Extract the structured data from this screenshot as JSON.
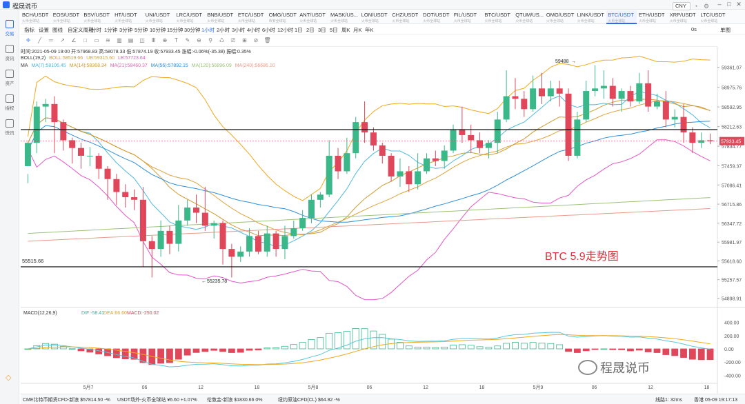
{
  "app": {
    "title": "程晟说币",
    "currency": "CNY"
  },
  "symbols": [
    {
      "name": "BCH/USDT",
      "sub": "火币全球站"
    },
    {
      "name": "EOS/USDT",
      "sub": "火币全球站"
    },
    {
      "name": "BSV/USDT",
      "sub": "火币全球站"
    },
    {
      "name": "HT/USDT",
      "sub": "火币全球站"
    },
    {
      "name": "UNI/USDT",
      "sub": "火币全球站"
    },
    {
      "name": "LRC/USDT",
      "sub": "火币全球站"
    },
    {
      "name": "BNB/USDT",
      "sub": "火币全球站"
    },
    {
      "name": "ETC/USDT",
      "sub": "火币全球站"
    },
    {
      "name": "OMG/USDT",
      "sub": "币安全球站"
    },
    {
      "name": "ANT/USDT",
      "sub": "火币全球站"
    },
    {
      "name": "MASK/US...",
      "sub": "火币全球站"
    },
    {
      "name": "LON/USDT",
      "sub": "火币全球站"
    },
    {
      "name": "CHZ/USDT",
      "sub": "火币全球站"
    },
    {
      "name": "DOT/USDT",
      "sub": "火币全球站"
    },
    {
      "name": "FIL/USDT",
      "sub": "火币全球站"
    },
    {
      "name": "BTC/USDT",
      "sub": "火币全球站"
    },
    {
      "name": "QTUM/US...",
      "sub": "火币全球站"
    },
    {
      "name": "OMG/USDT",
      "sub": "火币全球站"
    },
    {
      "name": "LINK/USDT",
      "sub": "火币全球站"
    },
    {
      "name": "BTC/USDT",
      "sub": "火币全球站"
    },
    {
      "name": "ETH/USDT",
      "sub": "火币全球站"
    },
    {
      "name": "XRP/USDT",
      "sub": "火币全球站"
    },
    {
      "name": "LTC/USDT",
      "sub": "火币全球站"
    }
  ],
  "active_symbol": 19,
  "sidebar": [
    {
      "label": "交易"
    },
    {
      "label": "资讯"
    },
    {
      "label": "资产"
    },
    {
      "label": "授权"
    },
    {
      "label": "快讯"
    }
  ],
  "toolbar": {
    "items": [
      "指标",
      "设置",
      "图线",
      "自定义周期",
      "分时",
      "1分钟",
      "3分钟",
      "5分钟",
      "10分钟",
      "15分钟",
      "30分钟",
      "1小时",
      "2小时",
      "3小时",
      "4小时",
      "6小时",
      "12小时",
      "1日",
      "2日",
      "3日",
      "5日",
      "周K",
      "月K",
      "年K"
    ],
    "active": "1小时",
    "right_a": "0s",
    "right_b": "单图"
  },
  "info": {
    "ohlc": "时间:2021-05-09 19:00  开:57968.83  高:58078.33  低:57874.19  收:57933.45  涨幅:-0.06%(-35.38)  振幅:0.35%",
    "boll": "BOLL(19,2)",
    "boll_mid": "BOLL:58519.66",
    "boll_ub": "UB:59315.60",
    "boll_lb": "LB:57723.64",
    "ma": "MA",
    "ma7": "MA(7):58106.45",
    "ma14": "MA(14):58368.34",
    "ma21": "MA(21):58460.37",
    "ma56": "MA(56):57892.15",
    "ma120": "MA(120):56896.09",
    "ma240": "MA(240):56686.10",
    "macd": "MACD(12,26,9)",
    "dif": "DIF:-58.41",
    "dea": "DEA:66.60",
    "macdv": "MACD:-250.02"
  },
  "chart_data": {
    "type": "candlestick",
    "price_axis": {
      "ticks": [
        59361.07,
        58975.76,
        58592.95,
        58212.63,
        57834.77,
        57459.37,
        57086.41,
        56715.86,
        56347.72,
        55981.97,
        55618.6,
        55257.57,
        54898.91
      ],
      "last_price": "57933.45"
    },
    "macd_axis": {
      "ticks": [
        400.0,
        200.0,
        0.0,
        -200.0,
        -400.0
      ]
    },
    "time_labels": [
      "5月7",
      "06",
      "12",
      "18",
      "5月8",
      "06",
      "12",
      "18",
      "5月9",
      "06",
      "12",
      "18"
    ],
    "annotations": {
      "high": "59488",
      "low": "55235.78",
      "support": "55515.66",
      "title": "BTC 5.9走势图"
    },
    "candles": [
      [
        57450,
        57900,
        57300,
        57120
      ],
      [
        57900,
        58600,
        58700,
        57700
      ],
      [
        58600,
        58650,
        58750,
        58300
      ],
      [
        58650,
        58300,
        58800,
        57700
      ],
      [
        58300,
        57950,
        58350,
        57750
      ],
      [
        57950,
        57800,
        58000,
        57500
      ],
      [
        57800,
        57650,
        57900,
        57400
      ],
      [
        57650,
        57650,
        57820,
        57450
      ],
      [
        57650,
        57400,
        57700,
        57200
      ],
      [
        57400,
        57200,
        57450,
        56800
      ],
      [
        57200,
        56950,
        57300,
        56700
      ],
      [
        56950,
        56850,
        57100,
        56650
      ],
      [
        56850,
        56800,
        57000,
        56600
      ],
      [
        56800,
        56000,
        57050,
        55500
      ],
      [
        56000,
        55850,
        56100,
        55300
      ],
      [
        55850,
        56200,
        56400,
        55700
      ],
      [
        56200,
        55950,
        56300,
        55750
      ],
      [
        55950,
        56400,
        56700,
        55800
      ],
      [
        56400,
        56650,
        56800,
        56300
      ],
      [
        56650,
        56550,
        56900,
        56350
      ],
      [
        56550,
        56300,
        57050,
        56200
      ],
      [
        56300,
        56350,
        56400,
        56050
      ],
      [
        56350,
        55850,
        56400,
        55550
      ],
      [
        55850,
        55700,
        55950,
        55300
      ],
      [
        55700,
        55800,
        55900,
        55600
      ],
      [
        55800,
        56100,
        56250,
        55700
      ],
      [
        56100,
        55800,
        56200,
        55750
      ],
      [
        55800,
        56150,
        56300,
        55700
      ],
      [
        56150,
        55850,
        56200,
        55700
      ],
      [
        55850,
        56100,
        56300,
        55650
      ],
      [
        56100,
        56250,
        56400,
        56050
      ],
      [
        56250,
        56450,
        56600,
        56200
      ],
      [
        56450,
        56800,
        56900,
        56350
      ],
      [
        56800,
        56900,
        56950,
        56650
      ],
      [
        56900,
        57650,
        57950,
        56850
      ],
      [
        57650,
        57350,
        57800,
        57200
      ],
      [
        57350,
        57700,
        58000,
        57300
      ],
      [
        57700,
        58300,
        58400,
        57600
      ],
      [
        58300,
        58100,
        58700,
        57900
      ],
      [
        58100,
        57850,
        58200,
        57750
      ],
      [
        57850,
        57650,
        57900,
        57500
      ],
      [
        57650,
        57250,
        57700,
        57150
      ],
      [
        57250,
        57350,
        57600,
        57050
      ],
      [
        57350,
        57100,
        57450,
        56950
      ],
      [
        57100,
        57350,
        57700,
        57000
      ],
      [
        57350,
        57600,
        57700,
        57300
      ],
      [
        57600,
        57550,
        57750,
        57450
      ],
      [
        57550,
        57750,
        57850,
        57400
      ],
      [
        57750,
        58150,
        58250,
        57700
      ],
      [
        58150,
        58050,
        58600,
        57900
      ],
      [
        58050,
        57950,
        58250,
        57700
      ],
      [
        57950,
        57800,
        58100,
        57700
      ],
      [
        57800,
        57900,
        57950,
        57600
      ],
      [
        57900,
        58350,
        58500,
        57700
      ],
      [
        58350,
        58800,
        59300,
        58300
      ],
      [
        58800,
        58750,
        59150,
        58550
      ],
      [
        58750,
        58550,
        58900,
        58400
      ],
      [
        58550,
        58950,
        59200,
        58500
      ],
      [
        58950,
        58800,
        59250,
        58650
      ],
      [
        58800,
        58950,
        59100,
        58700
      ],
      [
        58950,
        58850,
        59100,
        58600
      ],
      [
        58850,
        57650,
        58950,
        57550
      ],
      [
        57650,
        58350,
        58500,
        57600
      ],
      [
        58350,
        58900,
        59100,
        58300
      ],
      [
        58900,
        58950,
        59400,
        58800
      ],
      [
        58950,
        59000,
        59300,
        58750
      ],
      [
        59000,
        58750,
        59150,
        58600
      ],
      [
        58750,
        58900,
        58950,
        58500
      ],
      [
        58900,
        58700,
        59000,
        58600
      ],
      [
        58700,
        59050,
        59250,
        58650
      ],
      [
        59050,
        58600,
        59300,
        58500
      ],
      [
        58600,
        58700,
        58850,
        58550
      ],
      [
        58700,
        58350,
        58900,
        58200
      ],
      [
        58350,
        58400,
        58550,
        58200
      ],
      [
        58400,
        58100,
        58650,
        57900
      ],
      [
        58100,
        57900,
        58200,
        57700
      ],
      [
        57900,
        57950,
        58100,
        57800
      ],
      [
        57950,
        57933.45,
        58078,
        57874
      ]
    ]
  },
  "bottom": {
    "items": [
      "CME比特币期货CFD-新浪  $57814.50 -%",
      "USDT场外-火币全球站  ¥6.60 +1.07%",
      "伦敦金-新浪  $1830.66 0%",
      "纽约原油CFD(CL)  $64.82 -%"
    ],
    "line": "线路1: 32ms",
    "time": "香港 05-09 19:17:13"
  },
  "colors": {
    "up": "#3bb88a",
    "down": "#e0475a",
    "boll_ub": "#f0a81d",
    "boll_lb": "#e455c8",
    "boll_mid": "#e0a23a",
    "ma7": "#4fb8e0",
    "ma14": "#cf9b2f",
    "ma21": "#e067b0",
    "ma56": "#2f8ed8",
    "ma120": "#9ac37a",
    "ma240": "#e89a8a",
    "accent": "#2b6bf3"
  }
}
